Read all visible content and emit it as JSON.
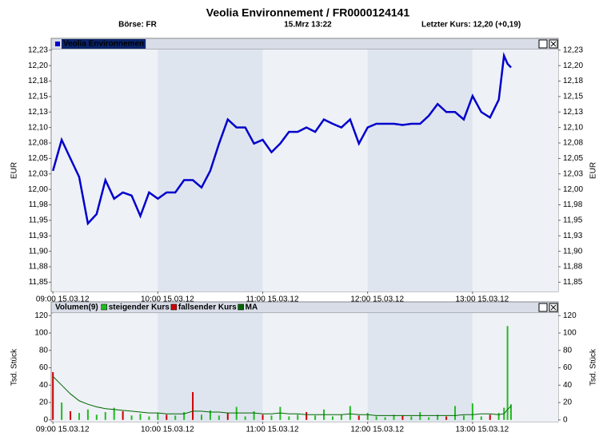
{
  "header": {
    "title": "Veolia Environnement  /  FR0000124141",
    "exchange": "Börse: FR",
    "datetime": "15.Mrz 13:22",
    "last_price": "Letzter Kurs: 12,20 (+0,19)"
  },
  "chart_data": [
    {
      "type": "line",
      "y_label": "EUR",
      "x": [
        "09:00",
        "09:05",
        "09:10",
        "09:15",
        "09:20",
        "09:25",
        "09:30",
        "09:35",
        "09:40",
        "09:45",
        "09:50",
        "09:55",
        "10:00",
        "10:05",
        "10:10",
        "10:15",
        "10:20",
        "10:25",
        "10:30",
        "10:35",
        "10:40",
        "10:45",
        "10:50",
        "10:55",
        "11:00",
        "11:05",
        "11:10",
        "11:15",
        "11:20",
        "11:25",
        "11:30",
        "11:35",
        "11:40",
        "11:45",
        "11:50",
        "11:55",
        "12:00",
        "12:05",
        "12:10",
        "12:15",
        "12:20",
        "12:25",
        "12:30",
        "12:35",
        "12:40",
        "12:45",
        "12:50",
        "12:55",
        "13:00",
        "13:05",
        "13:10",
        "13:15",
        "13:18",
        "13:20",
        "13:22"
      ],
      "series": [
        {
          "name": "Veolia Environnemen",
          "color": "#0000cc",
          "values": [
            12.03,
            12.08,
            12.05,
            12.02,
            11.945,
            11.96,
            12.015,
            11.985,
            11.995,
            11.99,
            11.957,
            11.995,
            11.985,
            11.995,
            11.995,
            12.015,
            12.015,
            12.003,
            12.03,
            12.074,
            12.113,
            12.1,
            12.1,
            12.074,
            12.08,
            12.06,
            12.074,
            12.093,
            12.093,
            12.1,
            12.093,
            12.113,
            12.106,
            12.1,
            12.113,
            12.074,
            12.1,
            12.106,
            12.106,
            12.106,
            12.104,
            12.106,
            12.106,
            12.119,
            12.138,
            12.125,
            12.125,
            12.113,
            12.151,
            12.125,
            12.116,
            12.145,
            12.216,
            12.203,
            12.197
          ]
        }
      ],
      "xlim": [
        "08:59",
        "13:49"
      ],
      "xticks": [
        {
          "value": "09:00",
          "label": "09:00 15.03.12"
        },
        {
          "value": "10:00",
          "label": "10:00 15.03.12"
        },
        {
          "value": "11:00",
          "label": "11:00 15.03.12"
        },
        {
          "value": "12:00",
          "label": "12:00 15.03.12"
        },
        {
          "value": "13:00",
          "label": "13:00 15.03.12"
        }
      ],
      "ylim": [
        11.835,
        12.226
      ],
      "yticks": [
        {
          "value": 11.85,
          "label": "11,85"
        },
        {
          "value": 11.875,
          "label": "11,88"
        },
        {
          "value": 11.9,
          "label": "11,90"
        },
        {
          "value": 11.925,
          "label": "11,93"
        },
        {
          "value": 11.95,
          "label": "11,95"
        },
        {
          "value": 11.975,
          "label": "11,98"
        },
        {
          "value": 12.0,
          "label": "12,00"
        },
        {
          "value": 12.025,
          "label": "12,03"
        },
        {
          "value": 12.05,
          "label": "12,05"
        },
        {
          "value": 12.075,
          "label": "12,08"
        },
        {
          "value": 12.1,
          "label": "12,10"
        },
        {
          "value": 12.125,
          "label": "12,13"
        },
        {
          "value": 12.15,
          "label": "12,15"
        },
        {
          "value": 12.175,
          "label": "12,18"
        },
        {
          "value": 12.2,
          "label": "12,20"
        },
        {
          "value": 12.225,
          "label": "12,23"
        }
      ]
    },
    {
      "type": "bar",
      "title": "Volumen(9)",
      "y_label": "Tsd. Stück",
      "x": [
        "09:00",
        "09:05",
        "09:10",
        "09:15",
        "09:20",
        "09:25",
        "09:30",
        "09:35",
        "09:40",
        "09:45",
        "09:50",
        "09:55",
        "10:00",
        "10:05",
        "10:10",
        "10:15",
        "10:20",
        "10:25",
        "10:30",
        "10:35",
        "10:40",
        "10:45",
        "10:50",
        "10:55",
        "11:00",
        "11:05",
        "11:10",
        "11:15",
        "11:20",
        "11:25",
        "11:30",
        "11:35",
        "11:40",
        "11:45",
        "11:50",
        "11:55",
        "12:00",
        "12:05",
        "12:10",
        "12:15",
        "12:20",
        "12:25",
        "12:30",
        "12:35",
        "12:40",
        "12:45",
        "12:50",
        "12:55",
        "13:00",
        "13:05",
        "13:10",
        "13:15",
        "13:18",
        "13:20",
        "13:22"
      ],
      "series": [
        {
          "name": "steigender Kurs",
          "color": "#22bb22",
          "values": [
            null,
            20,
            null,
            8,
            12,
            6,
            9,
            14,
            null,
            5,
            7,
            4,
            8,
            null,
            5,
            9,
            null,
            6,
            11,
            5,
            null,
            15,
            4,
            10,
            null,
            5,
            15,
            4,
            6,
            null,
            5,
            12,
            4,
            6,
            16,
            null,
            8,
            4,
            3,
            6,
            null,
            4,
            9,
            3,
            6,
            null,
            16,
            5,
            19,
            4,
            null,
            8,
            14,
            108,
            18
          ]
        },
        {
          "name": "fallsender Kurs",
          "color": "#cc0000",
          "values": [
            55,
            null,
            10,
            null,
            null,
            null,
            null,
            null,
            10,
            null,
            null,
            null,
            null,
            6,
            null,
            null,
            32,
            null,
            null,
            null,
            8,
            null,
            null,
            null,
            6,
            null,
            null,
            null,
            null,
            9,
            null,
            null,
            null,
            null,
            null,
            5,
            null,
            null,
            null,
            null,
            5,
            null,
            null,
            null,
            null,
            4,
            null,
            null,
            null,
            null,
            6,
            null,
            null,
            null,
            null
          ]
        },
        {
          "name": "MA",
          "color": "#006600",
          "type": "line",
          "values": [
            50,
            40,
            30,
            22,
            18,
            15,
            13,
            12,
            11,
            10,
            9,
            8,
            8,
            7,
            7,
            7,
            10,
            10,
            9,
            9,
            8,
            8,
            8,
            8,
            7,
            7,
            8,
            7,
            7,
            6,
            6,
            6,
            6,
            6,
            7,
            6,
            6,
            5,
            5,
            5,
            5,
            5,
            5,
            5,
            5,
            5,
            5,
            6,
            6,
            7,
            7,
            6,
            7,
            12,
            16
          ]
        }
      ],
      "xlim": [
        "08:59",
        "13:49"
      ],
      "xticks": [
        {
          "value": "09:00",
          "label": "09:00 15.03.12"
        },
        {
          "value": "10:00",
          "label": "10:00 15.03.12"
        },
        {
          "value": "11:00",
          "label": "11:00 15.03.12"
        },
        {
          "value": "12:00",
          "label": "12:00 15.03.12"
        },
        {
          "value": "13:00",
          "label": "13:00 15.03.12"
        }
      ],
      "ylim": [
        -2,
        123
      ],
      "yticks": [
        0,
        20,
        40,
        60,
        80,
        100,
        120
      ]
    }
  ]
}
